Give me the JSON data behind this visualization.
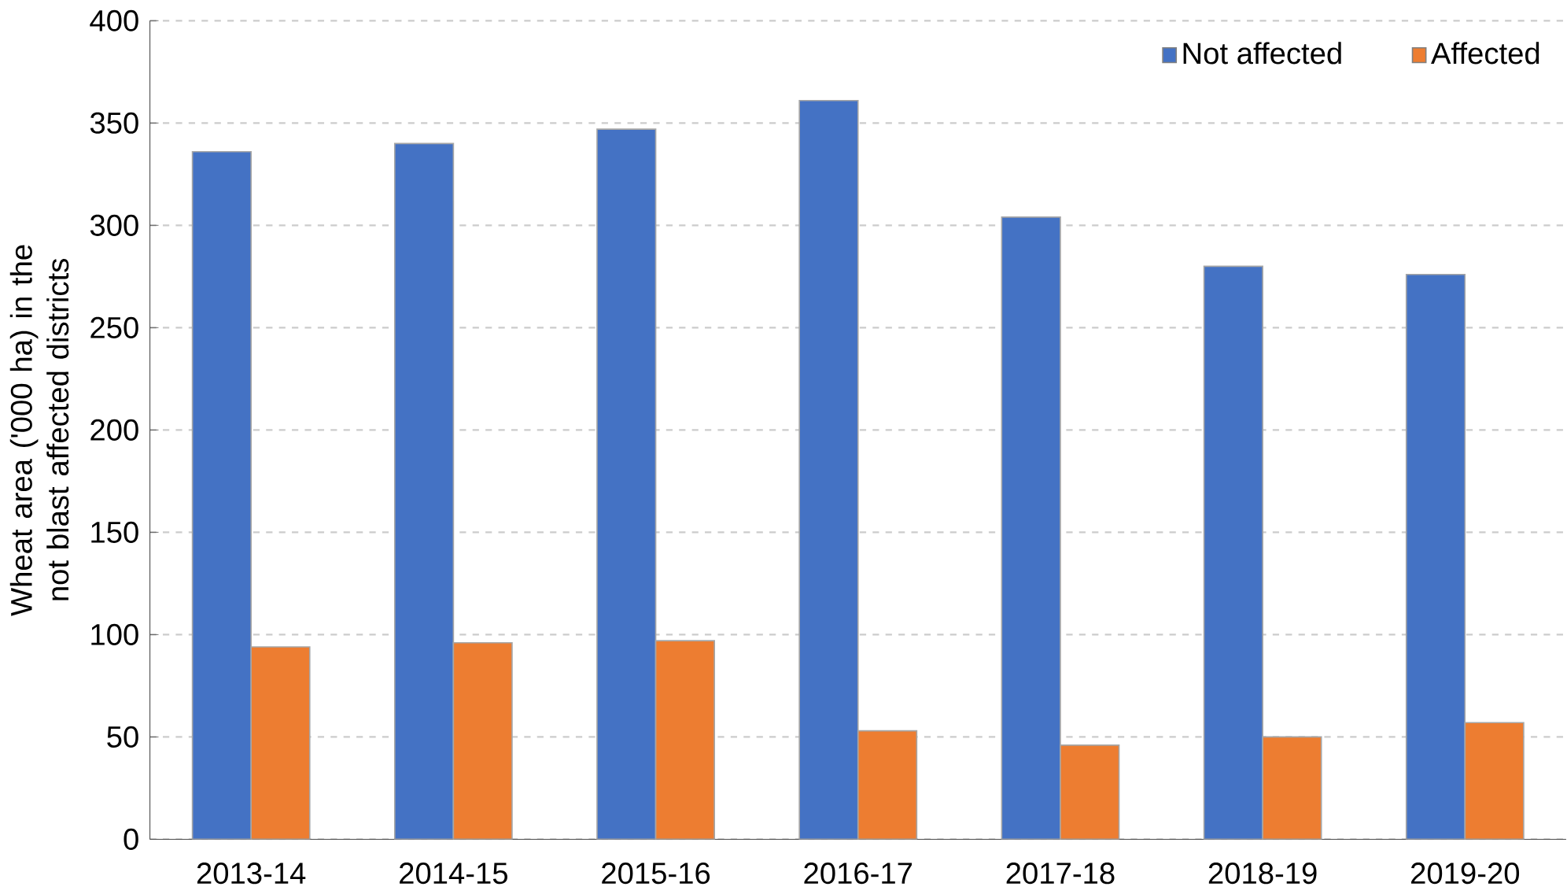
{
  "chart_data": {
    "type": "bar",
    "ylabel": "Wheat area ('000 ha) in the not blast affected districts",
    "categories": [
      "2013-14",
      "2014-15",
      "2015-16",
      "2016-17",
      "2017-18",
      "2018-19",
      "2019-20"
    ],
    "series": [
      {
        "name": "Not affected",
        "color": "#4472c4",
        "values": [
          336,
          340,
          347,
          361,
          304,
          280,
          276
        ]
      },
      {
        "name": "Affected",
        "color": "#ed7d31",
        "values": [
          94,
          96,
          97,
          53,
          46,
          50,
          57
        ]
      }
    ],
    "ylim": [
      0,
      400
    ],
    "yticks": [
      0,
      50,
      100,
      150,
      200,
      250,
      300,
      350,
      400
    ],
    "grid": "y",
    "legend": "top right"
  }
}
